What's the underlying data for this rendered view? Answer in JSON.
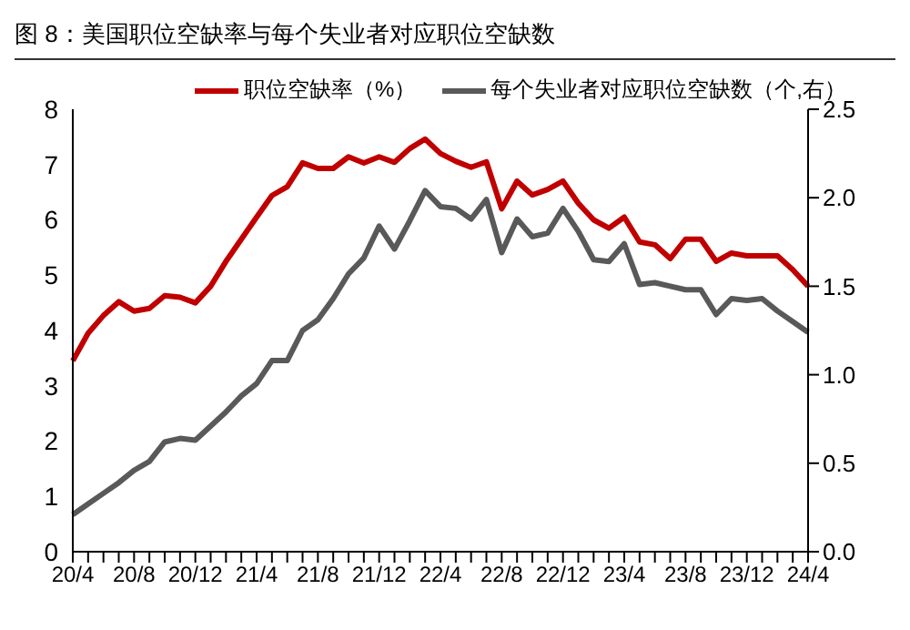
{
  "chart_data": {
    "type": "line",
    "title": "图 8：美国职位空缺率与每个失业者对应职位空缺数",
    "categories": [
      "20/4",
      null,
      null,
      null,
      "20/8",
      null,
      null,
      null,
      "20/12",
      null,
      null,
      null,
      "21/4",
      null,
      null,
      null,
      "21/8",
      null,
      null,
      null,
      "21/12",
      null,
      null,
      null,
      "22/4",
      null,
      null,
      null,
      "22/8",
      null,
      null,
      null,
      "22/12",
      null,
      null,
      null,
      "23/4",
      null,
      null,
      null,
      "23/8",
      null,
      null,
      null,
      "23/12",
      null,
      null,
      null,
      "24/4"
    ],
    "series": [
      {
        "name": "职位空缺率（%）",
        "color": "#c00000",
        "values": [
          3.45,
          3.95,
          4.27,
          4.52,
          4.35,
          4.4,
          4.63,
          4.6,
          4.5,
          4.8,
          5.25,
          5.65,
          6.05,
          6.44,
          6.6,
          7.03,
          6.93,
          6.93,
          7.14,
          7.03,
          7.14,
          7.04,
          7.29,
          7.46,
          7.2,
          7.06,
          6.95,
          7.05,
          6.2,
          6.7,
          6.45,
          6.55,
          6.7,
          6.3,
          6.0,
          5.85,
          6.05,
          5.6,
          5.55,
          5.3,
          5.65,
          5.65,
          5.25,
          5.4,
          5.35,
          5.35,
          5.35,
          5.1,
          4.8
        ]
      },
      {
        "name": "每个失业者对应职位空缺数（个,右）",
        "color": "#595959",
        "axis": "y2",
        "values": [
          0.21,
          0.27,
          0.33,
          0.39,
          0.46,
          0.51,
          0.62,
          0.64,
          0.63,
          0.71,
          0.79,
          0.88,
          0.95,
          1.08,
          1.08,
          1.25,
          1.31,
          1.43,
          1.57,
          1.66,
          1.84,
          1.71,
          1.87,
          2.04,
          1.95,
          1.94,
          1.88,
          1.99,
          1.69,
          1.88,
          1.78,
          1.8,
          1.94,
          1.81,
          1.65,
          1.64,
          1.74,
          1.51,
          1.52,
          1.5,
          1.48,
          1.48,
          1.34,
          1.43,
          1.42,
          1.43,
          1.36,
          1.3,
          1.24
        ]
      }
    ],
    "ylim": [
      0,
      8
    ],
    "yticks": [
      0,
      1,
      2,
      3,
      4,
      5,
      6,
      7,
      8
    ],
    "y2lim": [
      0,
      2.5
    ],
    "y2ticks": [
      {
        "value": 0,
        "label": "0.0"
      },
      {
        "value": 0.5,
        "label": "0.5"
      },
      {
        "value": 1,
        "label": "1.0"
      },
      {
        "value": 1.5,
        "label": "1.5"
      },
      {
        "value": 2,
        "label": "2.0"
      },
      {
        "value": 2.5,
        "label": "2.5"
      }
    ],
    "legend": "top",
    "marker": "none",
    "line_style": "solid"
  }
}
